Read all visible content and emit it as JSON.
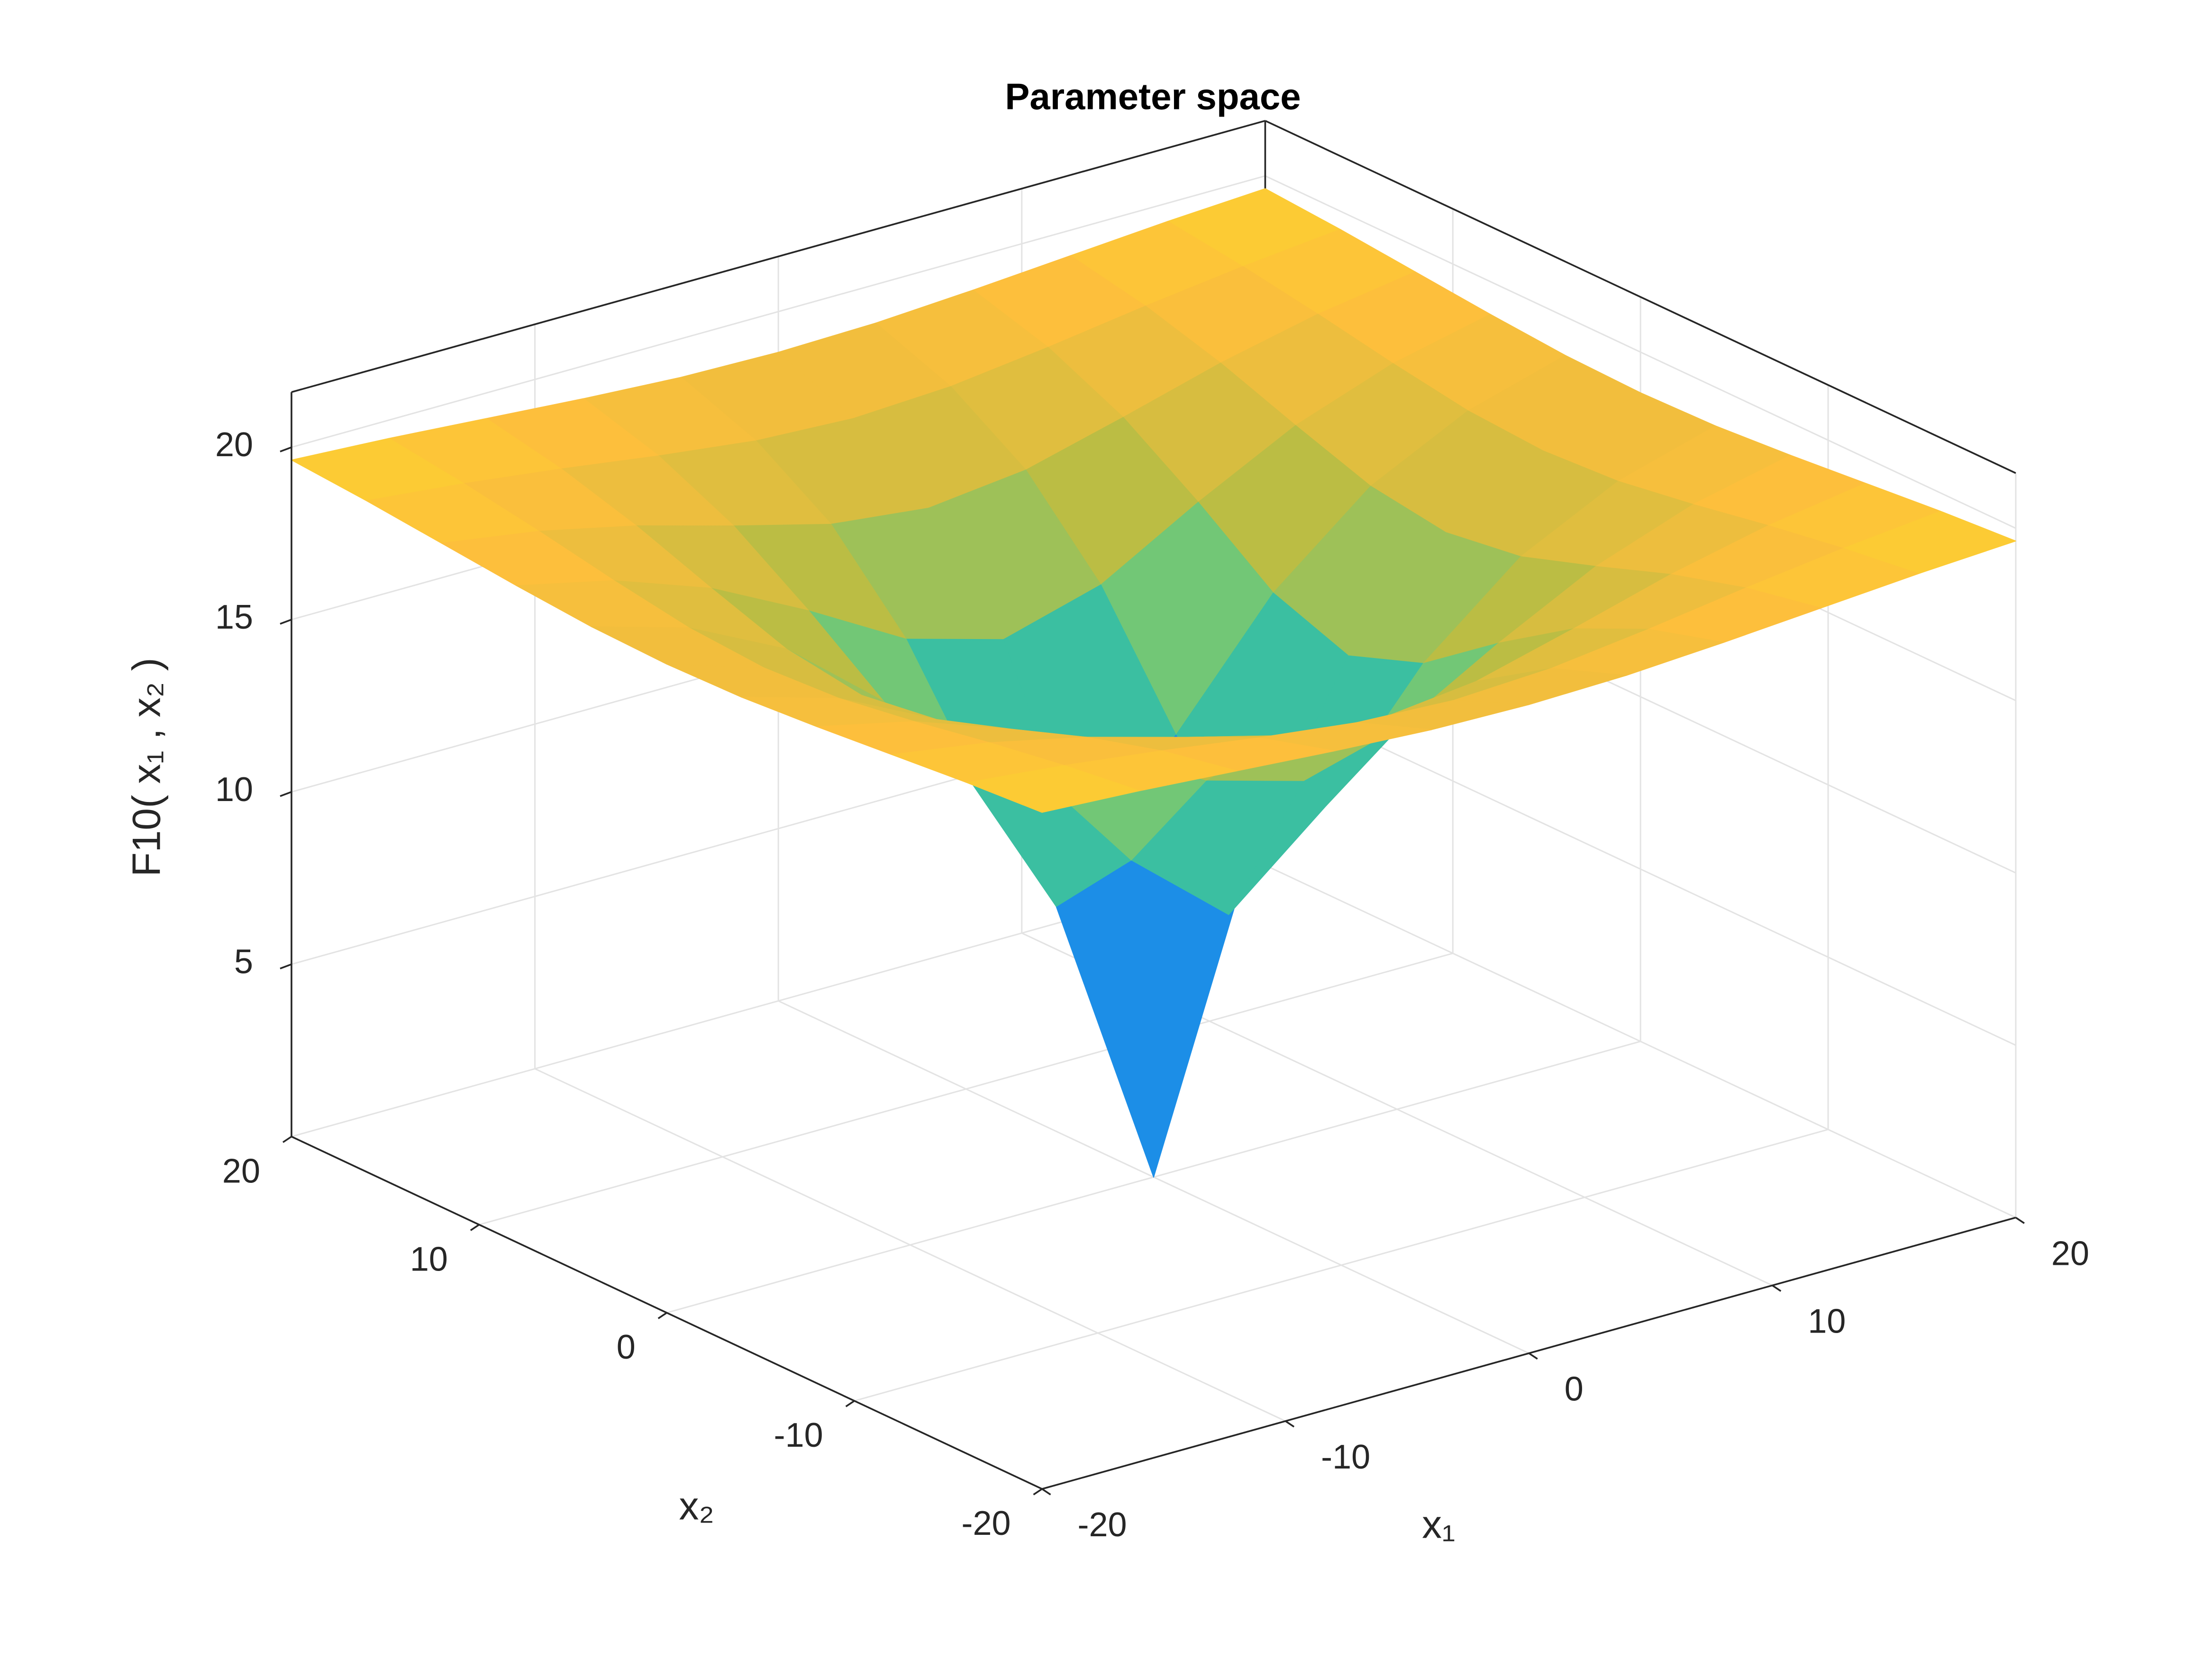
{
  "chart_data": {
    "type": "surface",
    "title": "Parameter space",
    "x_label": "x₁",
    "y_label": "x₂",
    "z_label": "F10( x₁ , x₂ )",
    "x": [
      -20,
      -16,
      -12,
      -8,
      -4,
      0,
      4,
      8,
      12,
      16,
      20
    ],
    "y": [
      -20,
      -16,
      -12,
      -8,
      -4,
      0,
      4,
      8,
      12,
      16,
      20
    ],
    "z": [
      [
        19.63,
        19.47,
        19.26,
        19.05,
        18.88,
        18.82,
        18.88,
        19.05,
        19.26,
        19.47,
        19.63
      ],
      [
        19.47,
        19.18,
        18.82,
        18.41,
        18.06,
        17.92,
        18.06,
        18.41,
        18.82,
        19.18,
        19.47
      ],
      [
        19.26,
        18.82,
        18.19,
        17.4,
        16.66,
        16.34,
        16.66,
        17.4,
        18.19,
        18.82,
        19.26
      ],
      [
        19.05,
        18.41,
        17.4,
        15.96,
        14.35,
        13.55,
        14.35,
        15.96,
        17.4,
        18.41,
        19.05
      ],
      [
        18.88,
        18.06,
        16.66,
        14.35,
        11.01,
        8.64,
        11.01,
        14.35,
        16.66,
        18.06,
        18.88
      ],
      [
        18.82,
        17.92,
        16.34,
        13.55,
        8.64,
        0,
        8.64,
        13.55,
        16.34,
        17.92,
        18.82
      ],
      [
        18.88,
        18.06,
        16.66,
        14.35,
        11.01,
        8.64,
        11.01,
        14.35,
        16.66,
        18.06,
        18.88
      ],
      [
        19.05,
        18.41,
        17.4,
        15.96,
        14.35,
        13.55,
        14.35,
        15.96,
        17.4,
        18.41,
        19.05
      ],
      [
        19.26,
        18.82,
        18.19,
        17.4,
        16.66,
        16.34,
        16.66,
        17.4,
        18.19,
        18.82,
        19.26
      ],
      [
        19.47,
        19.18,
        18.82,
        18.41,
        18.06,
        17.92,
        18.06,
        18.41,
        18.82,
        19.18,
        19.47
      ],
      [
        19.63,
        19.47,
        19.26,
        19.05,
        18.88,
        18.82,
        18.88,
        19.05,
        19.26,
        19.47,
        19.63
      ]
    ],
    "xlim": [
      -20,
      20
    ],
    "ylim": [
      -20,
      20
    ],
    "zlim": [
      0,
      21.6
    ],
    "xticks": [
      -20,
      -10,
      0,
      10,
      20
    ],
    "yticks": [
      -20,
      -10,
      0,
      10,
      20
    ],
    "zticks": [
      5,
      10,
      15,
      20
    ],
    "colormap": "parula",
    "grid": true
  }
}
